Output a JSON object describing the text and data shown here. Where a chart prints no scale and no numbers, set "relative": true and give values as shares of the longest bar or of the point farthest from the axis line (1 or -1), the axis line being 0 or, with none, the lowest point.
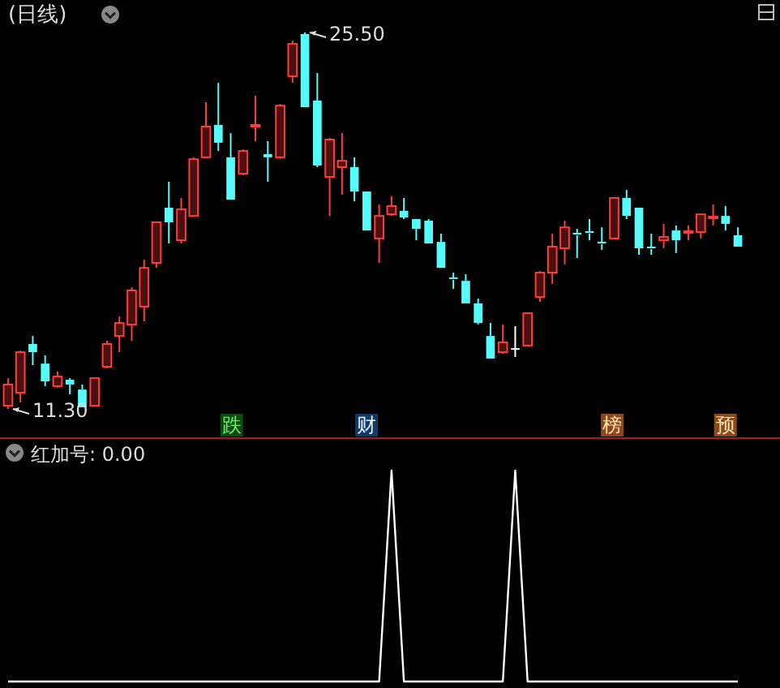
{
  "chart_data": [
    {
      "type": "candlestick",
      "title": "(日线)",
      "categories": [
        null,
        null,
        null,
        null,
        null,
        null,
        null,
        null,
        null,
        null,
        null,
        null,
        null,
        null,
        null,
        null,
        null,
        null,
        null,
        null,
        null,
        null,
        null,
        null,
        null,
        null,
        null,
        null,
        null,
        null,
        null,
        null,
        null,
        null,
        null,
        null,
        null,
        null,
        null,
        null,
        null,
        null,
        null,
        null,
        null,
        null,
        null,
        null,
        null,
        null,
        null,
        null,
        null,
        null,
        null,
        null,
        null,
        null,
        null,
        null
      ],
      "ohlc": [
        [
          11.42,
          12.46,
          11.3,
          12.22
        ],
        [
          11.91,
          13.5,
          11.54,
          13.44
        ],
        [
          13.75,
          14.05,
          12.95,
          13.44
        ],
        [
          13.01,
          13.32,
          12.16,
          12.34
        ],
        [
          12.16,
          12.71,
          12.1,
          12.52
        ],
        [
          12.4,
          12.46,
          11.85,
          12.22
        ],
        [
          12.03,
          12.22,
          11.36,
          11.36
        ],
        [
          11.42,
          12.46,
          11.42,
          12.46
        ],
        [
          12.89,
          13.87,
          12.83,
          13.75
        ],
        [
          14.05,
          14.79,
          13.44,
          14.54
        ],
        [
          14.48,
          15.89,
          13.87,
          15.77
        ],
        [
          15.16,
          16.93,
          14.6,
          16.62
        ],
        [
          16.81,
          18.34,
          16.62,
          18.34
        ],
        [
          18.89,
          19.87,
          17.54,
          18.34
        ],
        [
          17.66,
          19.26,
          17.54,
          18.83
        ],
        [
          18.58,
          20.79,
          18.58,
          20.72
        ],
        [
          20.79,
          22.87,
          20.79,
          21.95
        ],
        [
          22.01,
          23.6,
          21.03,
          21.34
        ],
        [
          20.79,
          21.7,
          19.19,
          19.19
        ],
        [
          20.17,
          21.09,
          20.11,
          21.03
        ],
        [
          21.95,
          23.11,
          21.4,
          22.01
        ],
        [
          20.91,
          21.4,
          19.87,
          20.79
        ],
        [
          20.79,
          22.8,
          20.73,
          22.74
        ],
        [
          23.85,
          25.19,
          23.6,
          25.07
        ],
        [
          25.44,
          25.5,
          22.68,
          22.68
        ],
        [
          22.93,
          23.97,
          20.42,
          20.48
        ],
        [
          20.05,
          21.52,
          18.58,
          21.46
        ],
        [
          20.42,
          21.7,
          19.38,
          20.66
        ],
        [
          20.42,
          20.79,
          19.13,
          19.5
        ],
        [
          19.5,
          19.5,
          18.03,
          18.03
        ],
        [
          17.73,
          19.01,
          16.81,
          18.58
        ],
        [
          18.64,
          19.32,
          18.58,
          18.95
        ],
        [
          18.77,
          19.26,
          18.46,
          18.52
        ],
        [
          18.46,
          18.46,
          17.66,
          18.09
        ],
        [
          18.4,
          18.46,
          17.54,
          17.54
        ],
        [
          17.6,
          17.91,
          16.62,
          16.62
        ],
        [
          16.23,
          16.44,
          15.83,
          16.17
        ],
        [
          16.13,
          16.38,
          15.28,
          15.28
        ],
        [
          15.28,
          15.46,
          14.48,
          14.54
        ],
        [
          14.05,
          14.54,
          13.2,
          13.2
        ],
        [
          13.44,
          14.48,
          13.38,
          13.81
        ],
        [
          13.56,
          14.42,
          13.26,
          13.56
        ],
        [
          13.69,
          14.91,
          13.69,
          14.91
        ],
        [
          15.52,
          16.5,
          15.34,
          16.44
        ],
        [
          16.44,
          17.91,
          16.01,
          17.42
        ],
        [
          17.36,
          18.4,
          16.75,
          18.15
        ],
        [
          17.91,
          18.09,
          16.99,
          17.85
        ],
        [
          17.97,
          18.46,
          17.66,
          17.91
        ],
        [
          17.57,
          18.15,
          17.3,
          17.51
        ],
        [
          17.73,
          19.26,
          17.73,
          19.26
        ],
        [
          19.26,
          19.56,
          18.46,
          18.58
        ],
        [
          18.89,
          18.89,
          17.11,
          17.36
        ],
        [
          17.39,
          17.91,
          17.11,
          17.33
        ],
        [
          17.66,
          18.28,
          17.36,
          17.79
        ],
        [
          18.03,
          18.22,
          17.18,
          17.66
        ],
        [
          17.94,
          18.22,
          17.66,
          18.0
        ],
        [
          17.97,
          18.64,
          17.73,
          18.64
        ],
        [
          18.49,
          19.01,
          18.22,
          18.55
        ],
        [
          18.58,
          18.95,
          18.03,
          18.28
        ],
        [
          17.85,
          18.15,
          17.42,
          17.42
        ]
      ],
      "annotations": [
        "25.50",
        "11.30",
        "跌",
        "财",
        "榜",
        "预"
      ]
    },
    {
      "type": "line",
      "title": "红加号: 0.00",
      "relative": true,
      "color": "#ffffff",
      "categories": [
        null,
        null,
        null,
        null,
        null,
        null,
        null,
        null,
        null,
        null,
        null,
        null,
        null,
        null,
        null,
        null,
        null,
        null,
        null,
        null,
        null,
        null,
        null,
        null,
        null,
        null,
        null,
        null,
        null,
        null,
        null,
        null,
        null,
        null,
        null,
        null,
        null,
        null,
        null,
        null,
        null,
        null,
        null,
        null,
        null,
        null,
        null,
        null,
        null,
        null,
        null,
        null,
        null,
        null,
        null,
        null,
        null,
        null,
        null,
        null
      ],
      "values": [
        0,
        0,
        0,
        0,
        0,
        0,
        0,
        0,
        0,
        0,
        0,
        0,
        0,
        0,
        0,
        0,
        0,
        0,
        0,
        0,
        0,
        0,
        0,
        0,
        0,
        0,
        0,
        0,
        0,
        0,
        0,
        1,
        0,
        0,
        0,
        0,
        0,
        0,
        0,
        0,
        0,
        1,
        0,
        0,
        0,
        0,
        0,
        0,
        0,
        0,
        0,
        0,
        0,
        0,
        0,
        0,
        0,
        0,
        0,
        0
      ]
    }
  ]
}
